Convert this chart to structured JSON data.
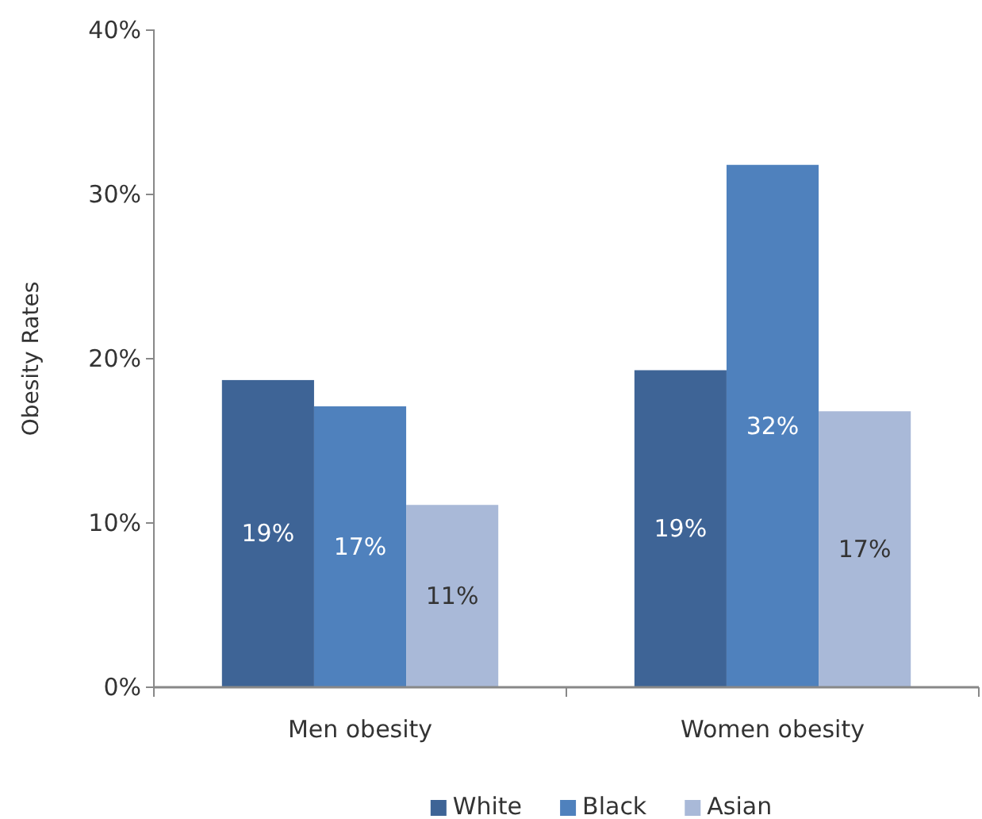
{
  "chart_data": {
    "type": "bar",
    "ylabel": "Obesity Rates",
    "categories": [
      "Men obesity",
      "Women obesity"
    ],
    "series": [
      {
        "name": "White",
        "color": "#3e6496",
        "values": [
          18.7,
          19.3
        ],
        "value_labels": [
          "19%",
          "19%"
        ]
      },
      {
        "name": "Black",
        "color": "#4f81bd",
        "values": [
          17.1,
          31.8
        ],
        "value_labels": [
          "17%",
          "32%"
        ]
      },
      {
        "name": "Asian",
        "color": "#a9b9d8",
        "values": [
          11.1,
          16.8
        ],
        "value_labels": [
          "11%",
          "17%"
        ]
      }
    ],
    "ylim": [
      0,
      40
    ],
    "yticks": [
      {
        "value": 0,
        "label": "0%"
      },
      {
        "value": 10,
        "label": "10%"
      },
      {
        "value": 20,
        "label": "20%"
      },
      {
        "value": 30,
        "label": "30%"
      },
      {
        "value": 40,
        "label": "40%"
      }
    ],
    "grid": false,
    "legend": "bottom"
  }
}
